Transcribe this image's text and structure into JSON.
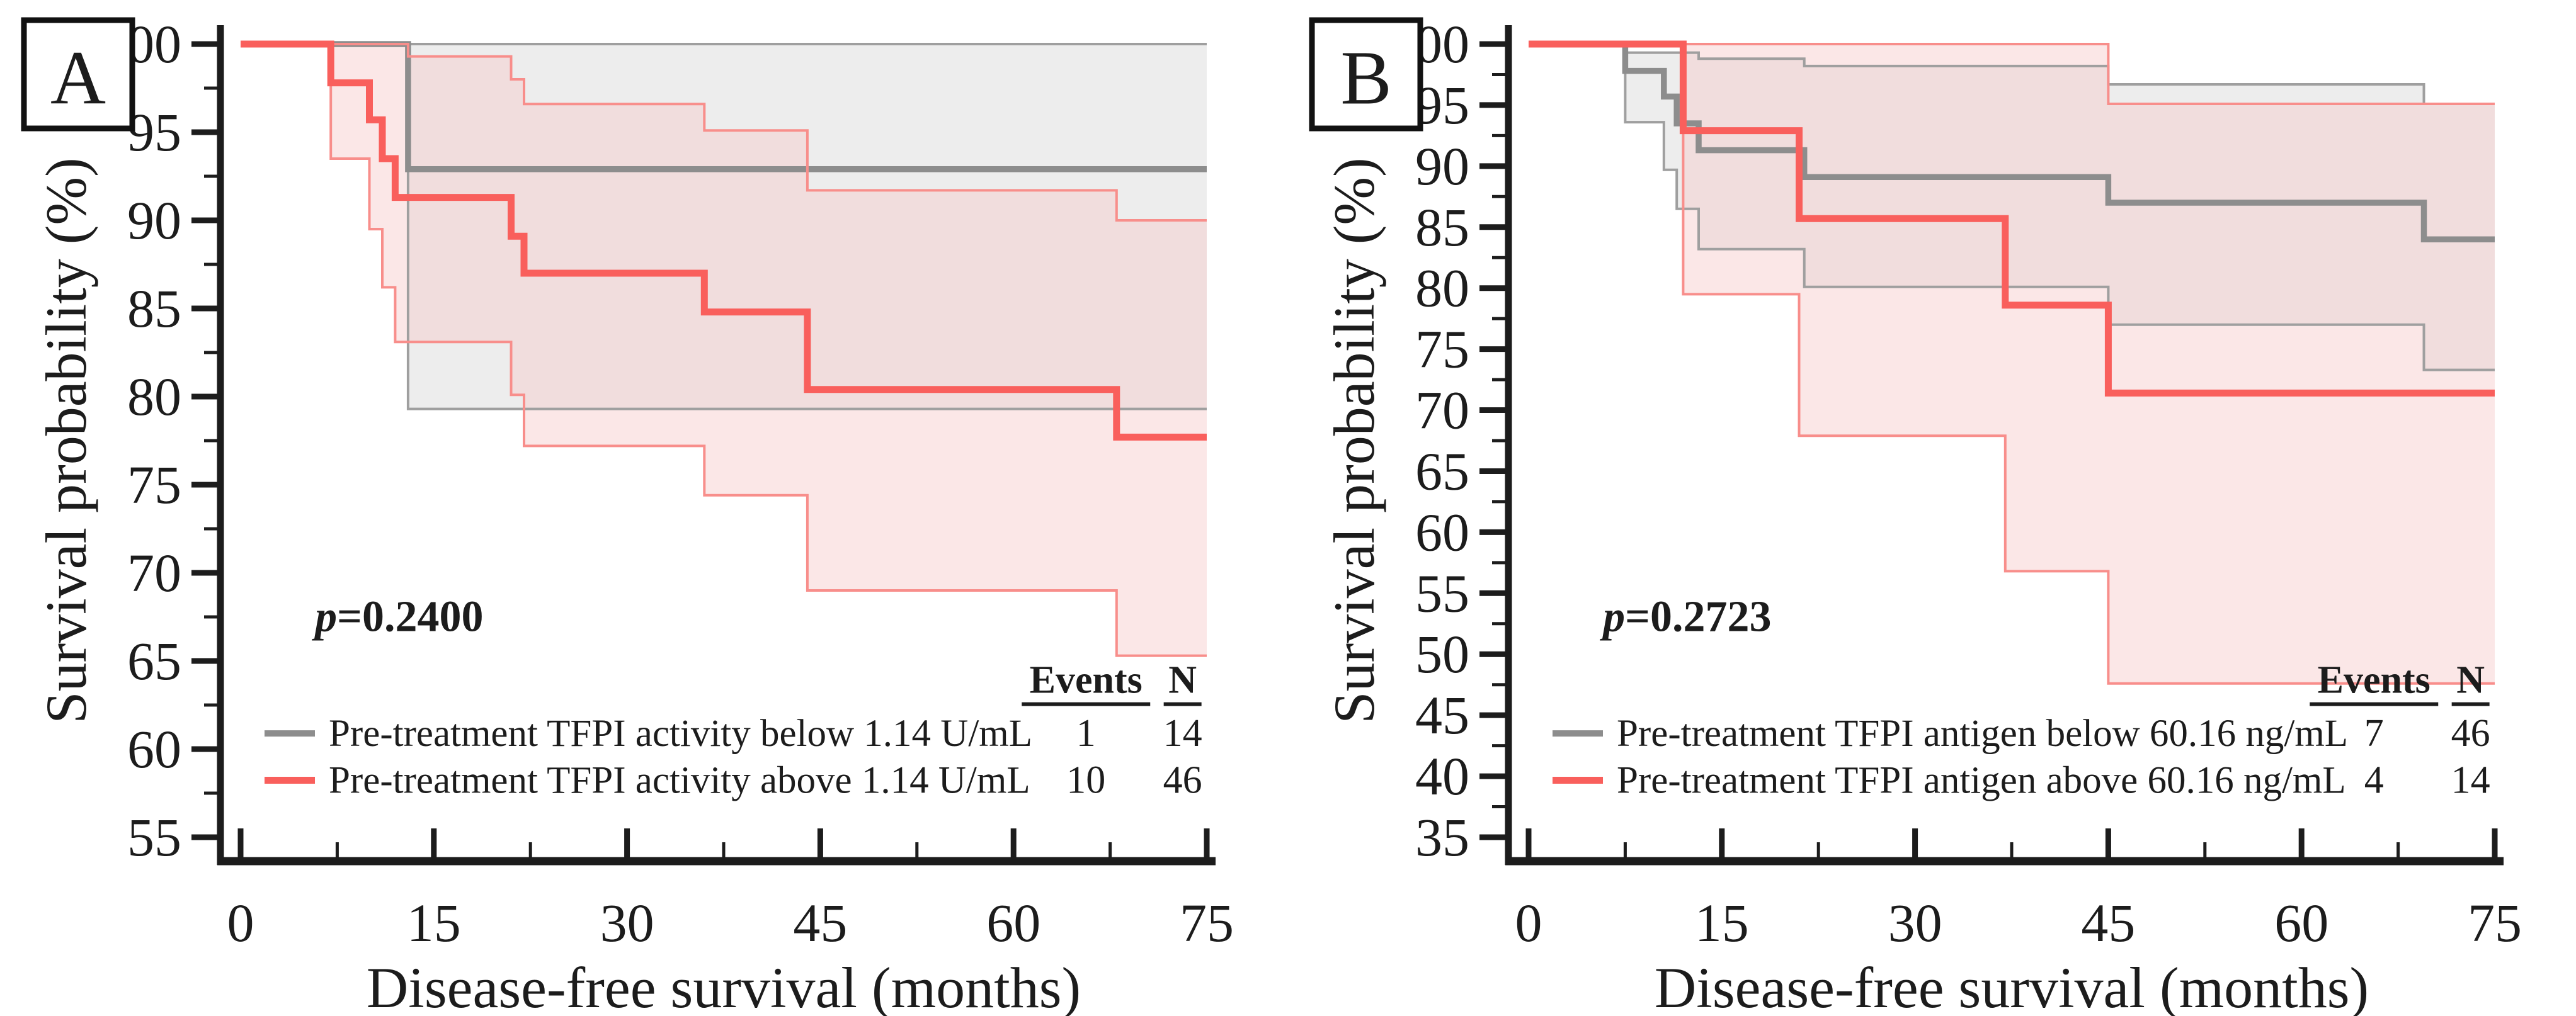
{
  "colors": {
    "background": "#ffffff",
    "axis": "#1c1c1c",
    "text": "#1c1c1c",
    "gray_curve": "#8d8d8d",
    "gray_ci_line": "#9f9f9f",
    "gray_band": "#dcdcdc",
    "red_curve": "#f95f5c",
    "red_ci_line": "#f88e8b",
    "red_band": "#f6caca"
  },
  "chart_data": [
    {
      "type": "line",
      "km_style": "step",
      "panel_label": "A",
      "xlabel": "Disease-free survival (months)",
      "ylabel": "Survival probability (%)",
      "p_prefix": "p",
      "p_value_text": "=0.2400",
      "xlim": [
        0,
        75
      ],
      "xticks": [
        0,
        15,
        30,
        45,
        60,
        75
      ],
      "x_minor_step": 7.5,
      "ylim": [
        55,
        100
      ],
      "yticks": [
        55,
        60,
        65,
        70,
        75,
        80,
        85,
        90,
        95,
        100
      ],
      "y_minor_step": 2.5,
      "grid": false,
      "legend_position": "bottom-right",
      "legend": {
        "events_header": "Events",
        "n_header": "N",
        "rows": [
          {
            "label": "Pre-treatment TFPI activity below 1.14 U/mL",
            "events": "1",
            "n": "14",
            "series": "below"
          },
          {
            "label": "Pre-treatment TFPI activity above 1.14 U/mL",
            "events": "10",
            "n": "46",
            "series": "above"
          }
        ]
      },
      "series": [
        {
          "name": "below",
          "color_key": "gray",
          "curve": [
            [
              0,
              100
            ],
            [
              13,
              100
            ],
            [
              13,
              92.9
            ],
            [
              75,
              92.9
            ]
          ],
          "ci_upper": [
            [
              0,
              100
            ],
            [
              75,
              100
            ]
          ],
          "ci_lower": [
            [
              0,
              100
            ],
            [
              13,
              100
            ],
            [
              13,
              79.3
            ],
            [
              75,
              79.3
            ]
          ]
        },
        {
          "name": "above",
          "color_key": "red",
          "curve": [
            [
              0,
              100
            ],
            [
              7,
              100
            ],
            [
              7,
              97.8
            ],
            [
              10,
              97.8
            ],
            [
              10,
              95.7
            ],
            [
              11,
              95.7
            ],
            [
              11,
              93.5
            ],
            [
              12,
              93.5
            ],
            [
              12,
              91.3
            ],
            [
              21,
              91.3
            ],
            [
              21,
              89.1
            ],
            [
              22,
              89.1
            ],
            [
              22,
              87.0
            ],
            [
              36,
              87.0
            ],
            [
              36,
              84.8
            ],
            [
              44,
              84.8
            ],
            [
              44,
              80.4
            ],
            [
              68,
              80.4
            ],
            [
              68,
              77.7
            ],
            [
              75,
              77.7
            ]
          ],
          "ci_upper": [
            [
              0,
              100
            ],
            [
              13,
              100
            ],
            [
              13,
              99.3
            ],
            [
              21,
              99.3
            ],
            [
              21,
              98.0
            ],
            [
              22,
              98.0
            ],
            [
              22,
              96.6
            ],
            [
              36,
              96.6
            ],
            [
              36,
              95.1
            ],
            [
              44,
              95.1
            ],
            [
              44,
              91.7
            ],
            [
              68,
              91.7
            ],
            [
              68,
              90.0
            ],
            [
              75,
              90.0
            ]
          ],
          "ci_lower": [
            [
              0,
              100
            ],
            [
              7,
              100
            ],
            [
              7,
              93.5
            ],
            [
              10,
              93.5
            ],
            [
              10,
              89.5
            ],
            [
              11,
              89.5
            ],
            [
              11,
              86.2
            ],
            [
              12,
              86.2
            ],
            [
              12,
              83.1
            ],
            [
              21,
              83.1
            ],
            [
              21,
              80.1
            ],
            [
              22,
              80.1
            ],
            [
              22,
              77.2
            ],
            [
              36,
              77.2
            ],
            [
              36,
              74.4
            ],
            [
              44,
              74.4
            ],
            [
              44,
              69.0
            ],
            [
              68,
              69.0
            ],
            [
              68,
              65.3
            ],
            [
              75,
              65.3
            ]
          ]
        }
      ]
    },
    {
      "type": "line",
      "km_style": "step",
      "panel_label": "B",
      "xlabel": "Disease-free survival (months)",
      "ylabel": "Survival probability (%)",
      "p_prefix": "p",
      "p_value_text": "=0.2723",
      "xlim": [
        0,
        75
      ],
      "xticks": [
        0,
        15,
        30,
        45,
        60,
        75
      ],
      "x_minor_step": 7.5,
      "ylim": [
        35,
        100
      ],
      "yticks": [
        35,
        40,
        45,
        50,
        55,
        60,
        65,
        70,
        75,
        80,
        85,
        90,
        95,
        100
      ],
      "y_minor_step": 2.5,
      "grid": false,
      "legend_position": "bottom-right",
      "legend": {
        "events_header": "Events",
        "n_header": "N",
        "rows": [
          {
            "label": "Pre-treatment TFPI antigen below 60.16 ng/mL",
            "events": "7",
            "n": "46",
            "series": "below"
          },
          {
            "label": "Pre-treatment TFPI antigen above 60.16 ng/mL",
            "events": "4",
            "n": "14",
            "series": "above"
          }
        ]
      },
      "series": [
        {
          "name": "below",
          "color_key": "gray",
          "curve": [
            [
              0,
              100
            ],
            [
              7.5,
              100
            ],
            [
              7.5,
              97.8
            ],
            [
              10.5,
              97.8
            ],
            [
              10.5,
              95.7
            ],
            [
              11.5,
              95.7
            ],
            [
              11.5,
              93.5
            ],
            [
              13.2,
              93.5
            ],
            [
              13.2,
              91.3
            ],
            [
              21.4,
              91.3
            ],
            [
              21.4,
              89.1
            ],
            [
              45,
              89.1
            ],
            [
              45,
              87.0
            ],
            [
              69.5,
              87.0
            ],
            [
              69.5,
              84.0
            ],
            [
              75,
              84.0
            ]
          ],
          "ci_upper": [
            [
              0,
              100
            ],
            [
              7.5,
              100
            ],
            [
              7.5,
              99.3
            ],
            [
              13.2,
              99.3
            ],
            [
              13.2,
              98.8
            ],
            [
              21.4,
              98.8
            ],
            [
              21.4,
              98.2
            ],
            [
              45,
              98.2
            ],
            [
              45,
              96.7
            ],
            [
              69.5,
              96.7
            ],
            [
              69.5,
              95.1
            ],
            [
              75,
              95.1
            ]
          ],
          "ci_lower": [
            [
              0,
              100
            ],
            [
              7.5,
              100
            ],
            [
              7.5,
              93.6
            ],
            [
              10.5,
              93.6
            ],
            [
              10.5,
              89.7
            ],
            [
              11.5,
              89.7
            ],
            [
              11.5,
              86.5
            ],
            [
              13.2,
              86.5
            ],
            [
              13.2,
              83.2
            ],
            [
              21.4,
              83.2
            ],
            [
              21.4,
              80.1
            ],
            [
              45,
              80.1
            ],
            [
              45,
              77.0
            ],
            [
              69.5,
              77.0
            ],
            [
              69.5,
              73.3
            ],
            [
              75,
              73.3
            ]
          ]
        },
        {
          "name": "above",
          "color_key": "red",
          "curve": [
            [
              0,
              100
            ],
            [
              12,
              100
            ],
            [
              12,
              92.9
            ],
            [
              21,
              92.9
            ],
            [
              21,
              85.7
            ],
            [
              37,
              85.7
            ],
            [
              37,
              78.6
            ],
            [
              45,
              78.6
            ],
            [
              45,
              71.4
            ],
            [
              75,
              71.4
            ]
          ],
          "ci_upper": [
            [
              0,
              100
            ],
            [
              45,
              100
            ],
            [
              45,
              95.1
            ],
            [
              75,
              95.1
            ]
          ],
          "ci_lower": [
            [
              0,
              100
            ],
            [
              12,
              100
            ],
            [
              12,
              79.5
            ],
            [
              21,
              79.5
            ],
            [
              21,
              67.9
            ],
            [
              37,
              67.9
            ],
            [
              37,
              56.8
            ],
            [
              45,
              56.8
            ],
            [
              45,
              47.6
            ],
            [
              75,
              47.6
            ]
          ]
        }
      ]
    }
  ]
}
